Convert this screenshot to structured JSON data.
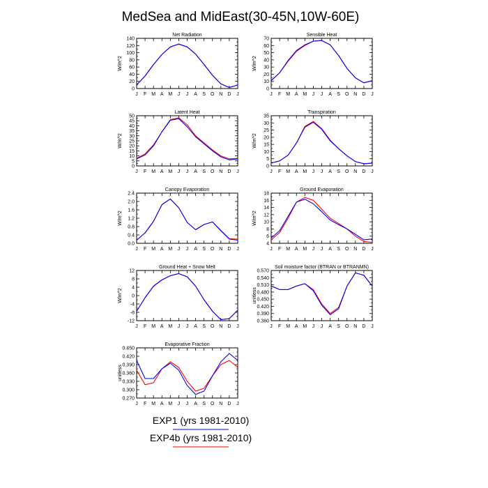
{
  "figure": {
    "title": "MedSea and MidEast(30-45N,10W-60E)",
    "colors": {
      "exp1": "#0000ff",
      "exp4b": "#ff0000"
    },
    "legend": [
      {
        "label": "EXP1 (yrs 1981-2010)",
        "color": "#0000ff"
      },
      {
        "label": "EXP4b (yrs 1981-2010)",
        "color": "#ff0000"
      }
    ]
  },
  "chart_data": [
    {
      "type": "line",
      "title": "Net Radiation",
      "xlabel": "",
      "ylabel": "W/m^2",
      "x": [
        "J",
        "F",
        "M",
        "A",
        "M",
        "J",
        "J",
        "A",
        "S",
        "O",
        "N",
        "D",
        "J"
      ],
      "ylim": [
        0,
        140
      ],
      "yticks": [
        "0",
        "20",
        "40",
        "60",
        "80",
        "100",
        "120",
        "140"
      ],
      "series": [
        {
          "color": "#ff0000",
          "values": [
            10,
            35,
            67,
            95,
            116,
            124,
            116,
            96,
            67,
            37,
            13,
            3,
            10
          ]
        },
        {
          "color": "#0000ff",
          "values": [
            10,
            35,
            67,
            95,
            116,
            124,
            116,
            96,
            67,
            37,
            13,
            3,
            10
          ]
        }
      ]
    },
    {
      "type": "line",
      "title": "Sensible Heat",
      "xlabel": "",
      "ylabel": "W/m^2",
      "x": [
        "J",
        "F",
        "M",
        "A",
        "M",
        "J",
        "J",
        "A",
        "S",
        "O",
        "N",
        "D",
        "J"
      ],
      "ylim": [
        0,
        70
      ],
      "yticks": [
        "0",
        "10",
        "20",
        "30",
        "40",
        "50",
        "60",
        "70"
      ],
      "series": [
        {
          "color": "#ff0000",
          "values": [
            11,
            22,
            38,
            52,
            60,
            66,
            67,
            61,
            46,
            28,
            15,
            8,
            11
          ]
        },
        {
          "color": "#0000ff",
          "values": [
            11,
            22,
            39,
            53,
            61,
            66,
            67,
            61,
            46,
            28,
            15,
            8,
            11
          ]
        }
      ]
    },
    {
      "type": "line",
      "title": "Latent Heat",
      "xlabel": "",
      "ylabel": "W/m^2",
      "x": [
        "J",
        "F",
        "M",
        "A",
        "M",
        "J",
        "J",
        "A",
        "S",
        "O",
        "N",
        "D",
        "J"
      ],
      "ylim": [
        0,
        50
      ],
      "yticks": [
        "0",
        "5",
        "10",
        "15",
        "20",
        "25",
        "30",
        "35",
        "40",
        "45",
        "50"
      ],
      "series": [
        {
          "color": "#ff0000",
          "values": [
            7.5,
            12,
            21,
            34,
            46,
            48,
            41,
            30,
            23,
            16,
            10,
            7,
            7.5
          ]
        },
        {
          "color": "#0000ff",
          "values": [
            7,
            11,
            20,
            34,
            45.5,
            47,
            39,
            29,
            22,
            15,
            9,
            6,
            7
          ]
        }
      ]
    },
    {
      "type": "line",
      "title": "Transpiration",
      "xlabel": "",
      "ylabel": "W/m^2",
      "x": [
        "J",
        "F",
        "M",
        "A",
        "M",
        "J",
        "J",
        "A",
        "S",
        "O",
        "N",
        "D",
        "J"
      ],
      "ylim": [
        0,
        35
      ],
      "yticks": [
        "0",
        "5",
        "10",
        "15",
        "20",
        "25",
        "30",
        "35"
      ],
      "series": [
        {
          "color": "#ff0000",
          "values": [
            2,
            3.5,
            7.5,
            16,
            27.5,
            31,
            26,
            18,
            12,
            7,
            3,
            1.5,
            2
          ]
        },
        {
          "color": "#0000ff",
          "values": [
            2,
            3.5,
            7.5,
            16,
            27,
            30.5,
            25.5,
            17.5,
            12,
            7,
            3,
            1.5,
            2
          ]
        }
      ]
    },
    {
      "type": "line",
      "title": "Canopy Evaporation",
      "xlabel": "",
      "ylabel": "W/m^2",
      "x": [
        "J",
        "F",
        "M",
        "A",
        "M",
        "J",
        "J",
        "A",
        "S",
        "O",
        "N",
        "D",
        "J"
      ],
      "ylim": [
        0,
        2.4
      ],
      "yticks": [
        "0.0",
        "0.4",
        "0.8",
        "1.2",
        "1.6",
        "2.0",
        "2.4"
      ],
      "series": [
        {
          "color": "#ff0000",
          "values": [
            0.15,
            0.5,
            1.05,
            1.85,
            2.12,
            1.7,
            1.0,
            0.65,
            0.9,
            1.02,
            0.62,
            0.22,
            0.2
          ]
        },
        {
          "color": "#0000ff",
          "values": [
            0.15,
            0.5,
            1.05,
            1.85,
            2.12,
            1.7,
            1.0,
            0.65,
            0.9,
            1.02,
            0.6,
            0.2,
            0.15
          ]
        }
      ]
    },
    {
      "type": "line",
      "title": "Ground Evaporation",
      "xlabel": "",
      "ylabel": "W/m^2",
      "x": [
        "J",
        "F",
        "M",
        "A",
        "M",
        "J",
        "J",
        "A",
        "S",
        "O",
        "N",
        "D",
        "J"
      ],
      "ylim": [
        4,
        18
      ],
      "yticks": [
        "4",
        "6",
        "8",
        "10",
        "12",
        "14",
        "16",
        "18"
      ],
      "series": [
        {
          "color": "#ff0000",
          "values": [
            5,
            7,
            11,
            15.5,
            16.8,
            16,
            13.5,
            11,
            9.5,
            8,
            6,
            4.5,
            4.3
          ]
        },
        {
          "color": "#0000ff",
          "values": [
            5.5,
            7.5,
            11.5,
            15.5,
            16.3,
            15,
            12.8,
            10.5,
            9.2,
            8,
            6.5,
            5,
            5.2
          ]
        }
      ]
    },
    {
      "type": "line",
      "title": "Ground Heat + Snow Melt",
      "xlabel": "",
      "ylabel": "W/m^2",
      "x": [
        "J",
        "F",
        "M",
        "A",
        "M",
        "J",
        "J",
        "A",
        "S",
        "O",
        "N",
        "D",
        "J"
      ],
      "ylim": [
        -12,
        12
      ],
      "yticks": [
        "-12",
        "-8",
        "-4",
        "0",
        "4",
        "8",
        "12"
      ],
      "series": [
        {
          "color": "#ff0000",
          "values": [
            -7.5,
            -1,
            4.5,
            7.5,
            9.5,
            10.5,
            9,
            4.5,
            -2,
            -7.5,
            -11.5,
            -11,
            -7
          ]
        },
        {
          "color": "#0000ff",
          "values": [
            -7.5,
            -1,
            4.5,
            7.5,
            9.5,
            10.5,
            9,
            4.5,
            -2,
            -7.5,
            -11.5,
            -11,
            -7
          ]
        }
      ]
    },
    {
      "type": "line",
      "title": "Soil moisture factor (BTRAN or BTRANMN)",
      "xlabel": "",
      "ylabel": "unitless",
      "x": [
        "J",
        "F",
        "M",
        "A",
        "M",
        "J",
        "J",
        "A",
        "S",
        "O",
        "N",
        "D",
        "J"
      ],
      "ylim": [
        0.36,
        0.57
      ],
      "yticks": [
        "0.360",
        "0.390",
        "0.420",
        "0.450",
        "0.480",
        "0.510",
        "0.540",
        "0.570"
      ],
      "series": [
        {
          "color": "#ff0000",
          "values": [
            0.505,
            0.49,
            0.49,
            0.505,
            0.515,
            0.49,
            0.43,
            0.39,
            0.415,
            0.505,
            0.56,
            0.55,
            0.505
          ]
        },
        {
          "color": "#0000ff",
          "values": [
            0.505,
            0.49,
            0.49,
            0.505,
            0.515,
            0.485,
            0.425,
            0.385,
            0.41,
            0.505,
            0.56,
            0.55,
            0.505
          ]
        }
      ]
    },
    {
      "type": "line",
      "title": "Evaporative Fraction",
      "xlabel": "",
      "ylabel": "unitless",
      "x": [
        "J",
        "F",
        "M",
        "A",
        "M",
        "J",
        "J",
        "A",
        "S",
        "O",
        "N",
        "D",
        "J"
      ],
      "ylim": [
        0.27,
        0.45
      ],
      "yticks": [
        "0.270",
        "0.300",
        "0.330",
        "0.360",
        "0.390",
        "0.420",
        "0.450"
      ],
      "series": [
        {
          "color": "#ff0000",
          "values": [
            0.37,
            0.318,
            0.325,
            0.375,
            0.4,
            0.38,
            0.33,
            0.295,
            0.305,
            0.35,
            0.39,
            0.405,
            0.38
          ]
        },
        {
          "color": "#0000ff",
          "values": [
            0.405,
            0.34,
            0.34,
            0.375,
            0.395,
            0.37,
            0.315,
            0.283,
            0.295,
            0.35,
            0.4,
            0.43,
            0.405
          ]
        }
      ]
    }
  ]
}
